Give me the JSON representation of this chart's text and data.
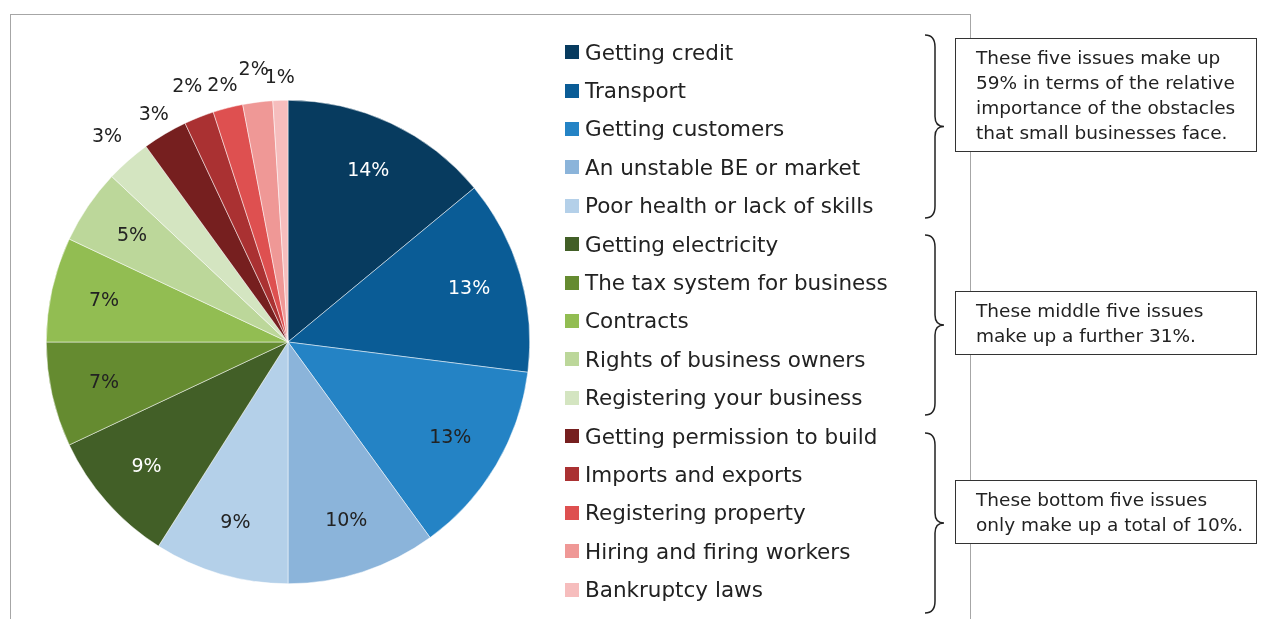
{
  "chart_data": {
    "type": "pie",
    "categories": [
      "Getting credit",
      "Transport",
      "Getting customers",
      "An unstable BE or market",
      "Poor health or lack of skills",
      "Getting electricity",
      "The tax system for business",
      "Contracts",
      "Rights of business owners",
      "Registering your business",
      "Getting permission to build",
      "Imports and exports",
      "Registering property",
      "Hiring and firing workers",
      "Bankruptcy laws"
    ],
    "values": [
      14,
      13,
      13,
      10,
      9,
      9,
      7,
      7,
      5,
      3,
      3,
      2,
      2,
      2,
      1
    ],
    "value_labels": [
      "14%",
      "13%",
      "13%",
      "10%",
      "9%",
      "9%",
      "7%",
      "7%",
      "5%",
      "3%",
      "3%",
      "2%",
      "2%",
      "2%",
      "1%"
    ],
    "colors": [
      "#073b5f",
      "#0a5c96",
      "#2483c5",
      "#8bb4da",
      "#b4d0e9",
      "#425f27",
      "#658b30",
      "#92bd52",
      "#bcd79a",
      "#d4e5c1",
      "#761f1f",
      "#aa3132",
      "#de5050",
      "#ef9896",
      "#f6bdbd"
    ],
    "legend": "right",
    "annotations": [
      "These five issues make up 59% in terms of the relative importance of the obstacles that small businesses face.",
      "These middle five issues make up a further 31%.",
      "These bottom five issues only make up a total of 10%."
    ]
  }
}
